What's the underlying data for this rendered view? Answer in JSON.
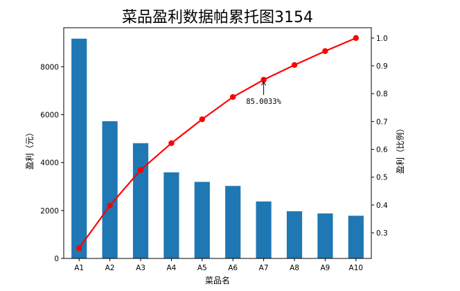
{
  "chart_data": {
    "type": "bar+line",
    "title": "菜品盈利数据帕累托图3154",
    "xlabel": "菜品名",
    "ylabel_left": "盈利（元）",
    "ylabel_right": "盈利（比例）",
    "categories": [
      "A1",
      "A2",
      "A3",
      "A4",
      "A5",
      "A6",
      "A7",
      "A8",
      "A9",
      "A10"
    ],
    "bar_values": [
      9173,
      5729,
      4811,
      3594,
      3195,
      3026,
      2378,
      1970,
      1877,
      1782
    ],
    "line_values": [
      0.245,
      0.398,
      0.526,
      0.622,
      0.708,
      0.788,
      0.85,
      0.903,
      0.953,
      1.0
    ],
    "left_ylim": [
      0,
      9630
    ],
    "left_yticks": [
      0,
      2000,
      4000,
      6000,
      8000
    ],
    "right_ylim": [
      0.208,
      1.037
    ],
    "right_yticks": [
      0.3,
      0.4,
      0.5,
      0.6,
      0.7,
      0.8,
      0.9,
      1.0
    ],
    "annotation": {
      "text": "85.0033%",
      "category": "A7"
    },
    "colors": {
      "bar": "#1f77b4",
      "line": "#ff0000"
    },
    "grid": false,
    "legend": "none"
  }
}
